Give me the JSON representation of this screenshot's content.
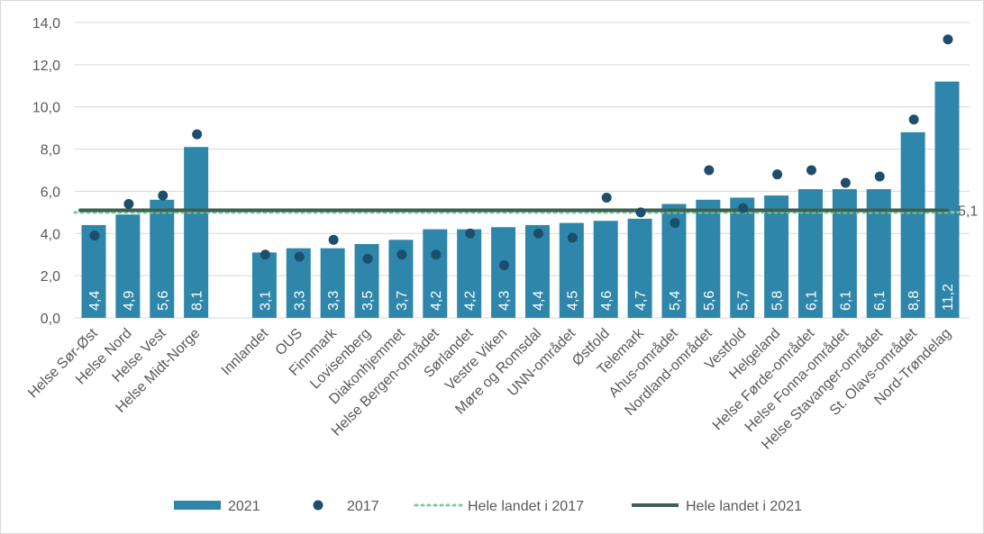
{
  "chart_data": {
    "type": "bar",
    "categories": [
      "Helse Sør-Øst",
      "Helse Nord",
      "Helse Vest",
      "Helse Midt-Norge",
      "",
      "Innlandet",
      "OUS",
      "Finnmark",
      "Lovisenberg",
      "Diakonhjemmet",
      "Helse Bergen-området",
      "Sørlandet",
      "Vestre Viken",
      "Møre og Romsdal",
      "UNN-området",
      "Østfold",
      "Telemark",
      "Ahus-området",
      "Nordland-området",
      "Vestfold",
      "Helgeland",
      "Helse Førde-området",
      "Helse Fonna-området",
      "Helse Stavanger-området",
      "St. Olavs-området",
      "Nord-Trøndelag"
    ],
    "series": [
      {
        "name": "2021",
        "type": "bar",
        "color": "#2e86ab",
        "values": [
          4.4,
          4.9,
          5.6,
          8.1,
          null,
          3.1,
          3.3,
          3.3,
          3.5,
          3.7,
          4.2,
          4.2,
          4.3,
          4.4,
          4.5,
          4.6,
          4.7,
          5.4,
          5.6,
          5.7,
          5.8,
          6.1,
          6.1,
          6.1,
          8.8,
          11.2
        ],
        "labels": [
          "4,4",
          "4,9",
          "5,6",
          "8,1",
          "",
          "3,1",
          "3,3",
          "3,3",
          "3,5",
          "3,7",
          "4,2",
          "4,2",
          "4,3",
          "4,4",
          "4,5",
          "4,6",
          "4,7",
          "5,4",
          "5,6",
          "5,7",
          "5,8",
          "6,1",
          "6,1",
          "6,1",
          "8,8",
          "11,2"
        ]
      },
      {
        "name": "2017",
        "type": "scatter",
        "color": "#1d4e6b",
        "values": [
          3.9,
          5.4,
          5.8,
          8.7,
          null,
          3.0,
          2.9,
          3.7,
          2.8,
          3.0,
          3.0,
          4.0,
          2.5,
          4.0,
          3.8,
          5.7,
          5.0,
          4.5,
          7.0,
          5.2,
          6.8,
          7.0,
          6.4,
          6.7,
          9.4,
          13.2
        ]
      },
      {
        "name": "Hele landet i 2017",
        "type": "line-dotted",
        "color": "#7ecba1",
        "value": 5.0
      },
      {
        "name": "Hele landet i 2021",
        "type": "line",
        "color": "#3c6150",
        "value": 5.1,
        "label": "5,1"
      }
    ],
    "ylim": [
      0,
      14
    ],
    "yticks": [
      "0,0",
      "2,0",
      "4,0",
      "6,0",
      "8,0",
      "10,0",
      "12,0",
      "14,0"
    ],
    "grid": true,
    "legend": "bottom"
  }
}
